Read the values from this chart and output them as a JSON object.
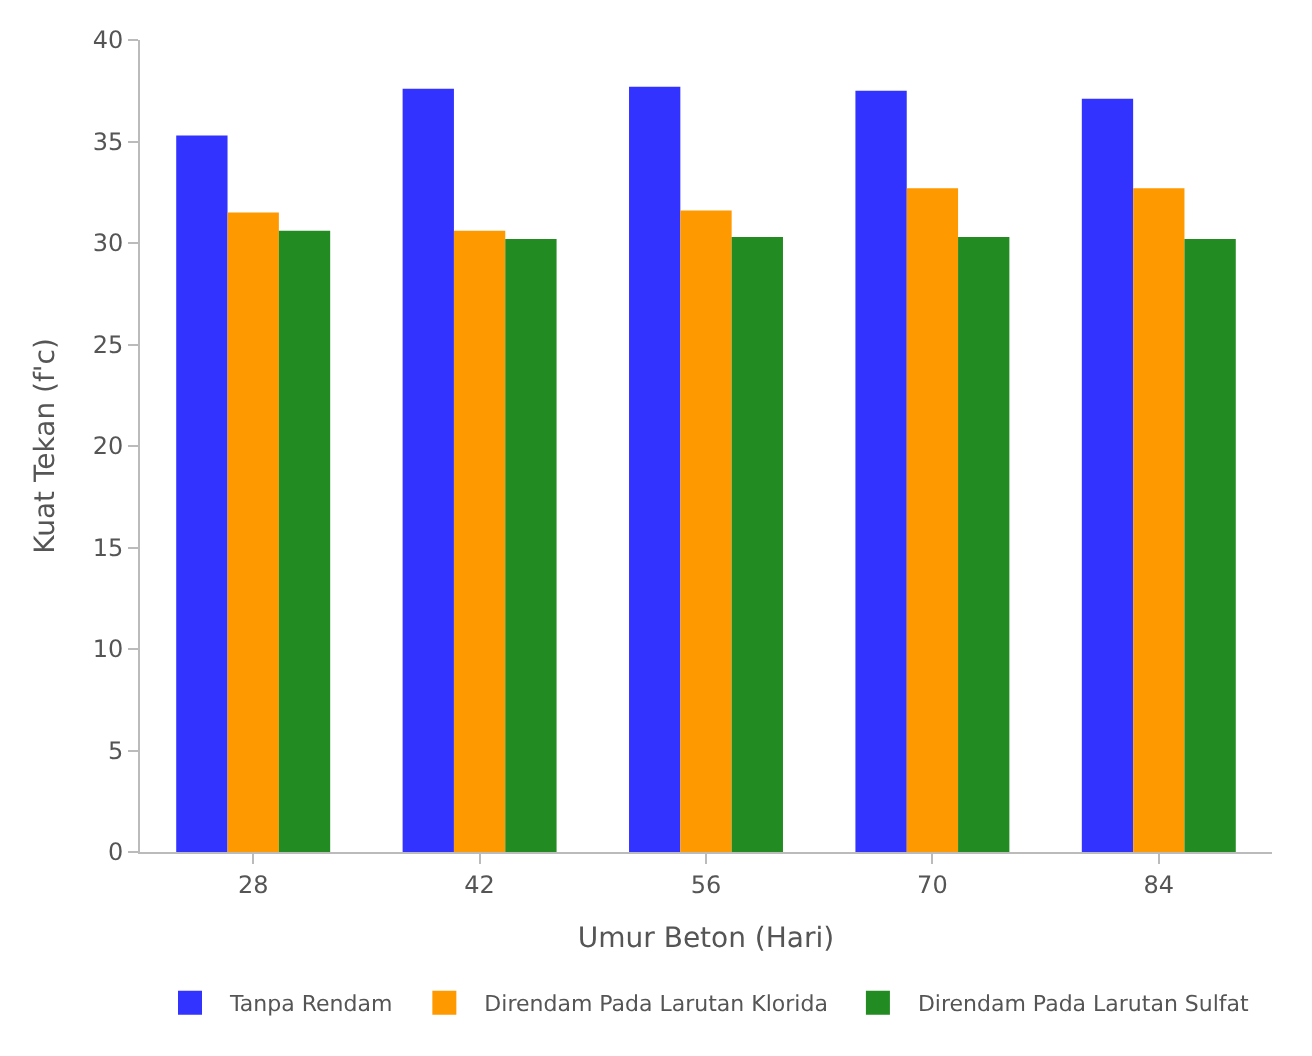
{
  "chart_data": {
    "type": "bar",
    "xlabel": "Umur Beton (Hari)",
    "ylabel": "Kuat Tekan (f'c)",
    "categories": [
      "28",
      "42",
      "56",
      "70",
      "84"
    ],
    "series": [
      {
        "name": "Tanpa Rendam",
        "color": "#3333ff",
        "values": [
          35.3,
          37.6,
          37.7,
          37.5,
          37.1
        ]
      },
      {
        "name": "Direndam Pada Larutan Klorida",
        "color": "#ff9900",
        "values": [
          31.5,
          30.6,
          31.6,
          32.7,
          32.7
        ]
      },
      {
        "name": "Direndam Pada Larutan Sulfat",
        "color": "#228b22",
        "values": [
          30.6,
          30.2,
          30.3,
          30.3,
          30.2
        ]
      }
    ],
    "ylim": [
      0,
      40
    ],
    "yticks": [
      0,
      5,
      10,
      15,
      20,
      25,
      30,
      35,
      40
    ],
    "legend": "bottom"
  }
}
